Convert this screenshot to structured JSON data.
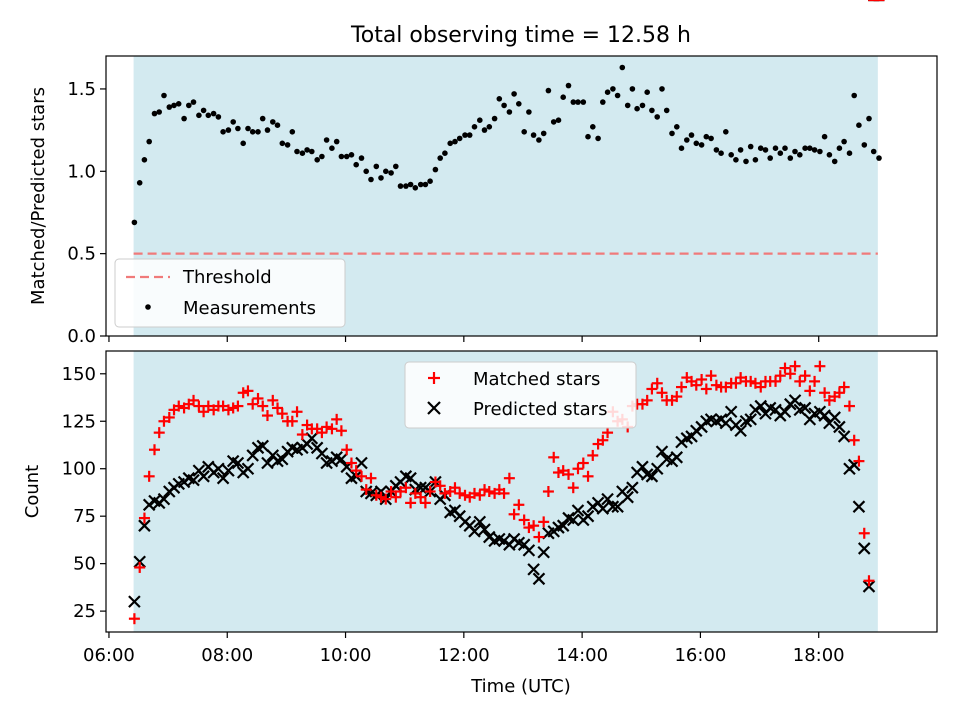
{
  "title": "Total observing time = 12.58 h",
  "colors": {
    "band": "#d3eaf0",
    "threshold": "#f07a7a",
    "measurement": "#000000",
    "matched": "#ff0000",
    "predicted": "#000000"
  },
  "chart_data": [
    {
      "type": "scatter",
      "panel": "top",
      "ylabel": "Matched/Predicted stars",
      "ylim": [
        0,
        1.7
      ],
      "xlim_hours": [
        5.95,
        20.0
      ],
      "yticks": [
        0.0,
        0.5,
        1.0,
        1.5
      ],
      "ytick_labels": [
        "0.0",
        "0.5",
        "1.0",
        "1.5"
      ],
      "observing_window": [
        "06:25",
        "19:00"
      ],
      "threshold": 0.5,
      "legend": {
        "placement": "lower-left",
        "entries": [
          "Threshold",
          "Measurements"
        ]
      },
      "series": [
        {
          "name": "Measurements",
          "marker": "dot",
          "x_hours": [
            6.43,
            6.52,
            6.6,
            6.68,
            6.77,
            6.85,
            6.93,
            7.02,
            7.1,
            7.18,
            7.27,
            7.35,
            7.43,
            7.52,
            7.6,
            7.68,
            7.77,
            7.85,
            7.93,
            8.02,
            8.1,
            8.18,
            8.27,
            8.35,
            8.43,
            8.52,
            8.6,
            8.68,
            8.77,
            8.85,
            8.93,
            9.02,
            9.1,
            9.18,
            9.27,
            9.35,
            9.43,
            9.52,
            9.6,
            9.68,
            9.77,
            9.85,
            9.93,
            10.02,
            10.1,
            10.18,
            10.27,
            10.35,
            10.43,
            10.52,
            10.6,
            10.68,
            10.77,
            10.85,
            10.93,
            11.02,
            11.1,
            11.18,
            11.27,
            11.35,
            11.43,
            11.52,
            11.6,
            11.68,
            11.77,
            11.85,
            11.93,
            12.02,
            12.1,
            12.18,
            12.27,
            12.35,
            12.43,
            12.52,
            12.6,
            12.68,
            12.77,
            12.85,
            12.93,
            13.02,
            13.1,
            13.18,
            13.27,
            13.35,
            13.43,
            13.52,
            13.6,
            13.68,
            13.77,
            13.85,
            13.93,
            14.02,
            14.1,
            14.18,
            14.27,
            14.35,
            14.43,
            14.52,
            14.6,
            14.68,
            14.77,
            14.85,
            14.93,
            15.02,
            15.1,
            15.18,
            15.27,
            15.35,
            15.43,
            15.52,
            15.6,
            15.68,
            15.77,
            15.85,
            15.93,
            16.02,
            16.1,
            16.18,
            16.27,
            16.35,
            16.43,
            16.52,
            16.6,
            16.68,
            16.77,
            16.85,
            16.93,
            17.02,
            17.1,
            17.18,
            17.27,
            17.35,
            17.43,
            17.52,
            17.6,
            17.68,
            17.77,
            17.85,
            17.93,
            18.02,
            18.1,
            18.18,
            18.27,
            18.35,
            18.43,
            18.52,
            18.6,
            18.68,
            18.77,
            18.85,
            18.93,
            19.02
          ],
          "y": [
            0.69,
            0.93,
            1.07,
            1.18,
            1.35,
            1.36,
            1.46,
            1.39,
            1.4,
            1.41,
            1.32,
            1.4,
            1.42,
            1.34,
            1.37,
            1.34,
            1.35,
            1.33,
            1.24,
            1.25,
            1.3,
            1.26,
            1.17,
            1.26,
            1.24,
            1.24,
            1.32,
            1.25,
            1.3,
            1.28,
            1.17,
            1.16,
            1.24,
            1.12,
            1.11,
            1.13,
            1.12,
            1.07,
            1.09,
            1.19,
            1.14,
            1.18,
            1.09,
            1.09,
            1.1,
            1.04,
            1.08,
            1.0,
            0.95,
            1.03,
            0.96,
            1.0,
            0.99,
            1.03,
            0.91,
            0.91,
            0.92,
            0.9,
            0.92,
            0.92,
            0.94,
            1.01,
            1.08,
            1.11,
            1.17,
            1.18,
            1.2,
            1.22,
            1.22,
            1.27,
            1.31,
            1.25,
            1.27,
            1.32,
            1.44,
            1.4,
            1.36,
            1.47,
            1.41,
            1.24,
            1.36,
            1.22,
            1.19,
            1.23,
            1.49,
            1.3,
            1.31,
            1.45,
            1.52,
            1.42,
            1.42,
            1.42,
            1.21,
            1.27,
            1.2,
            1.42,
            1.48,
            1.5,
            1.46,
            1.63,
            1.4,
            1.5,
            1.38,
            1.4,
            1.48,
            1.37,
            1.33,
            1.5,
            1.37,
            1.23,
            1.27,
            1.14,
            1.19,
            1.22,
            1.17,
            1.16,
            1.21,
            1.2,
            1.13,
            1.11,
            1.24,
            1.1,
            1.07,
            1.13,
            1.06,
            1.15,
            1.07,
            1.14,
            1.13,
            1.08,
            1.14,
            1.11,
            1.14,
            1.08,
            1.12,
            1.1,
            1.14,
            1.14,
            1.13,
            1.12,
            1.21,
            1.1,
            1.06,
            1.14,
            1.18,
            1.11,
            1.46,
            1.28,
            1.16,
            1.32,
            1.12,
            1.08
          ]
        }
      ]
    },
    {
      "type": "scatter",
      "panel": "bottom",
      "xlabel": "Time (UTC)",
      "ylabel": "Count",
      "ylim": [
        14,
        162
      ],
      "xlim_hours": [
        5.95,
        20.0
      ],
      "yticks": [
        25,
        50,
        75,
        100,
        125,
        150
      ],
      "ytick_labels": [
        "25",
        "50",
        "75",
        "100",
        "125",
        "150"
      ],
      "xticks_hours": [
        6,
        8,
        10,
        12,
        14,
        16,
        18
      ],
      "xtick_labels": [
        "06:00",
        "08:00",
        "10:00",
        "12:00",
        "14:00",
        "16:00",
        "18:00"
      ],
      "observing_window": [
        "06:25",
        "19:00"
      ],
      "legend": {
        "placement": "upper-center",
        "entries": [
          "Matched stars",
          "Predicted stars"
        ]
      },
      "x_hours": [
        6.43,
        6.52,
        6.6,
        6.68,
        6.77,
        6.85,
        6.93,
        7.02,
        7.1,
        7.18,
        7.27,
        7.35,
        7.43,
        7.52,
        7.6,
        7.68,
        7.77,
        7.85,
        7.93,
        8.02,
        8.1,
        8.18,
        8.27,
        8.35,
        8.43,
        8.52,
        8.6,
        8.68,
        8.77,
        8.85,
        8.93,
        9.02,
        9.1,
        9.18,
        9.27,
        9.35,
        9.43,
        9.52,
        9.6,
        9.68,
        9.77,
        9.85,
        9.93,
        10.02,
        10.1,
        10.18,
        10.27,
        10.35,
        10.43,
        10.52,
        10.6,
        10.68,
        10.77,
        10.85,
        10.93,
        11.02,
        11.1,
        11.18,
        11.27,
        11.35,
        11.43,
        11.52,
        11.6,
        11.68,
        11.77,
        11.85,
        11.93,
        12.02,
        12.1,
        12.18,
        12.27,
        12.35,
        12.43,
        12.52,
        12.6,
        12.68,
        12.77,
        12.85,
        12.93,
        13.02,
        13.1,
        13.18,
        13.27,
        13.35,
        13.43,
        13.52,
        13.6,
        13.68,
        13.77,
        13.85,
        13.93,
        14.02,
        14.1,
        14.18,
        14.27,
        14.35,
        14.43,
        14.52,
        14.6,
        14.68,
        14.77,
        14.85,
        14.93,
        15.02,
        15.1,
        15.18,
        15.27,
        15.35,
        15.43,
        15.52,
        15.6,
        15.68,
        15.77,
        15.85,
        15.93,
        16.02,
        16.1,
        16.18,
        16.27,
        16.35,
        16.43,
        16.52,
        16.6,
        16.68,
        16.77,
        16.85,
        16.93,
        17.02,
        17.1,
        17.18,
        17.27,
        17.35,
        17.43,
        17.52,
        17.6,
        17.68,
        17.77,
        17.85,
        17.93,
        18.02,
        18.1,
        18.18,
        18.27,
        18.35,
        18.43,
        18.52,
        18.6,
        18.68,
        18.77,
        18.85,
        18.93,
        19.02
      ],
      "series": [
        {
          "name": "Matched stars",
          "marker": "plus",
          "y": [
            21,
            48,
            74,
            96,
            110,
            119,
            125,
            127,
            131,
            133,
            132,
            134,
            136,
            133,
            130,
            133,
            131,
            133,
            133,
            131,
            132,
            133,
            140,
            141,
            134,
            137,
            133,
            128,
            136,
            132,
            129,
            125,
            125,
            130,
            118,
            123,
            121,
            121,
            119,
            122,
            121,
            126,
            120,
            110,
            103,
            99,
            96,
            89,
            95,
            86,
            85,
            84,
            88,
            85,
            88,
            90,
            82,
            87,
            85,
            82,
            88,
            93,
            91,
            87,
            88,
            90,
            87,
            86,
            85,
            87,
            86,
            89,
            88,
            87,
            89,
            87,
            95,
            76,
            81,
            73,
            69,
            70,
            64,
            72,
            88,
            106,
            98,
            99,
            97,
            90,
            100,
            103,
            96,
            107,
            113,
            115,
            119,
            130,
            125,
            126,
            122,
            133,
            134,
            134,
            136,
            142,
            145,
            140,
            136,
            136,
            138,
            143,
            148,
            146,
            144,
            147,
            142,
            149,
            144,
            143,
            143,
            145,
            145,
            148,
            146,
            146,
            145,
            143,
            146,
            146,
            146,
            149,
            153,
            150,
            154,
            146,
            149,
            141,
            146,
            154,
            140,
            136,
            138,
            140,
            143,
            133,
            115,
            104,
            66,
            41
          ]
        },
        {
          "name": "Predicted stars",
          "marker": "x",
          "y": [
            30,
            51,
            70,
            81,
            83,
            82,
            84,
            88,
            90,
            92,
            93,
            95,
            94,
            99,
            96,
            101,
            98,
            100,
            95,
            99,
            104,
            103,
            98,
            100,
            107,
            111,
            112,
            103,
            107,
            104,
            105,
            109,
            111,
            110,
            111,
            113,
            116,
            111,
            108,
            103,
            104,
            106,
            105,
            101,
            95,
            96,
            103,
            88,
            87,
            86,
            88,
            84,
            88,
            91,
            93,
            96,
            95,
            89,
            90,
            90,
            88,
            93,
            84,
            86,
            77,
            78,
            75,
            72,
            70,
            67,
            72,
            68,
            64,
            62,
            63,
            62,
            60,
            63,
            61,
            60,
            57,
            47,
            42,
            56,
            66,
            67,
            69,
            70,
            74,
            73,
            78,
            73,
            75,
            80,
            82,
            79,
            84,
            80,
            80,
            88,
            85,
            90,
            98,
            101,
            97,
            96,
            100,
            109,
            105,
            104,
            106,
            114,
            116,
            117,
            120,
            122,
            125,
            126,
            125,
            126,
            124,
            130,
            123,
            120,
            125,
            126,
            131,
            133,
            129,
            132,
            131,
            128,
            130,
            134,
            136,
            131,
            132,
            126,
            129,
            130,
            128,
            124,
            127,
            122,
            117,
            100,
            102,
            80,
            58,
            38
          ]
        }
      ]
    }
  ]
}
